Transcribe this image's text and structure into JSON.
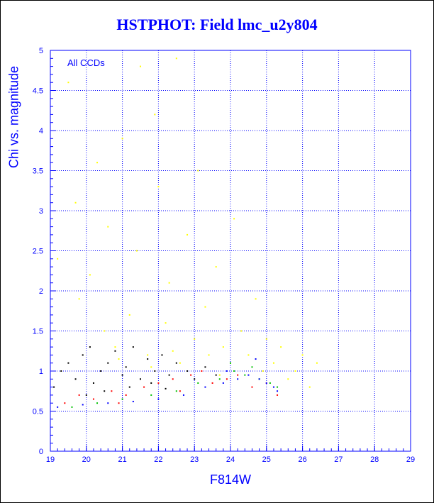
{
  "chart_data": {
    "type": "scatter",
    "title": "HSTPHOT: Field lmc_u2y804",
    "xlabel": "F814W",
    "ylabel": "Chi vs. magnitude",
    "annotation": "All CCDs",
    "xlim": [
      19,
      29
    ],
    "ylim": [
      0,
      5
    ],
    "x_ticks": [
      "19",
      "20",
      "21",
      "22",
      "23",
      "24",
      "25",
      "26",
      "27",
      "28",
      "29"
    ],
    "y_ticks": [
      "0",
      "0.5",
      "1",
      "1.5",
      "2",
      "2.5",
      "3",
      "3.5",
      "4",
      "4.5",
      "5"
    ],
    "grid": true,
    "colors": {
      "title": "#0000ff",
      "axes": "#0000ff",
      "grid": "#0000ff",
      "series": [
        "#ffff00",
        "#000000",
        "#ff0000",
        "#00c000",
        "#0000ff"
      ]
    },
    "series": [
      {
        "color": "#ffff00",
        "x": [
          19.2,
          19.5,
          19.7,
          19.8,
          20.1,
          20.3,
          20.5,
          20.6,
          20.8,
          21.0,
          21.2,
          21.4,
          21.5,
          21.7,
          21.9,
          22.0,
          22.2,
          22.3,
          22.5,
          22.6,
          22.8,
          23.0,
          23.1,
          23.3,
          23.4,
          23.6,
          23.8,
          24.0,
          24.1,
          24.3,
          24.5,
          24.7,
          24.9,
          25.0,
          25.2,
          25.4,
          25.6,
          25.8,
          26.0,
          26.2,
          26.4,
          21.8,
          22.4,
          20.9,
          23.7
        ],
        "y": [
          2.4,
          4.6,
          3.1,
          1.9,
          2.2,
          3.6,
          1.5,
          2.8,
          1.3,
          3.9,
          1.7,
          2.5,
          4.8,
          1.2,
          4.2,
          3.3,
          1.6,
          2.1,
          4.9,
          1.1,
          2.7,
          1.4,
          3.5,
          1.8,
          1.2,
          2.3,
          1.3,
          1.1,
          2.9,
          1.5,
          1.2,
          1.9,
          1.0,
          1.4,
          1.1,
          1.3,
          0.9,
          1.0,
          1.2,
          0.8,
          1.1,
          1.05,
          1.25,
          1.15,
          0.95
        ]
      },
      {
        "color": "#000000",
        "x": [
          19.1,
          19.3,
          19.5,
          19.7,
          19.9,
          20.1,
          20.2,
          20.4,
          20.6,
          20.8,
          21.0,
          21.1,
          21.3,
          21.5,
          21.7,
          21.9,
          22.1,
          22.3,
          22.5,
          22.8,
          23.0,
          23.3,
          23.6,
          20.0,
          20.5,
          21.2,
          21.8,
          22.2
        ],
        "y": [
          0.8,
          1.0,
          1.1,
          0.9,
          1.2,
          1.3,
          0.85,
          1.0,
          1.1,
          1.25,
          0.95,
          1.05,
          1.3,
          0.9,
          1.15,
          1.0,
          1.2,
          0.95,
          1.1,
          1.0,
          0.9,
          1.05,
          0.95,
          0.7,
          0.75,
          0.8,
          0.85,
          0.78
        ]
      },
      {
        "color": "#ff0000",
        "x": [
          19.4,
          19.8,
          20.2,
          20.7,
          21.1,
          21.6,
          22.0,
          22.4,
          22.9,
          23.2,
          23.5,
          23.9,
          24.2,
          24.6,
          25.0,
          25.3,
          20.9,
          22.6
        ],
        "y": [
          0.6,
          0.7,
          0.65,
          0.75,
          0.7,
          0.8,
          0.85,
          0.9,
          0.95,
          1.0,
          0.85,
          0.9,
          0.95,
          0.8,
          0.85,
          0.7,
          0.6,
          0.75
        ]
      },
      {
        "color": "#00c000",
        "x": [
          19.6,
          20.3,
          21.0,
          21.8,
          22.5,
          23.1,
          23.7,
          24.1,
          24.4,
          24.8,
          25.1,
          25.3,
          24.0,
          24.6
        ],
        "y": [
          0.55,
          0.6,
          0.65,
          0.7,
          0.75,
          0.85,
          0.9,
          1.0,
          0.95,
          0.9,
          0.85,
          0.8,
          1.1,
          1.05
        ]
      },
      {
        "color": "#0000ff",
        "x": [
          19.2,
          19.9,
          20.6,
          21.3,
          22.0,
          22.7,
          23.3,
          23.8,
          24.2,
          24.5,
          24.8,
          25.0,
          25.2,
          25.3,
          23.9,
          24.7
        ],
        "y": [
          0.55,
          0.58,
          0.6,
          0.62,
          0.65,
          0.7,
          0.8,
          0.85,
          0.9,
          0.95,
          0.9,
          0.85,
          0.8,
          0.75,
          1.0,
          1.15
        ]
      }
    ]
  }
}
